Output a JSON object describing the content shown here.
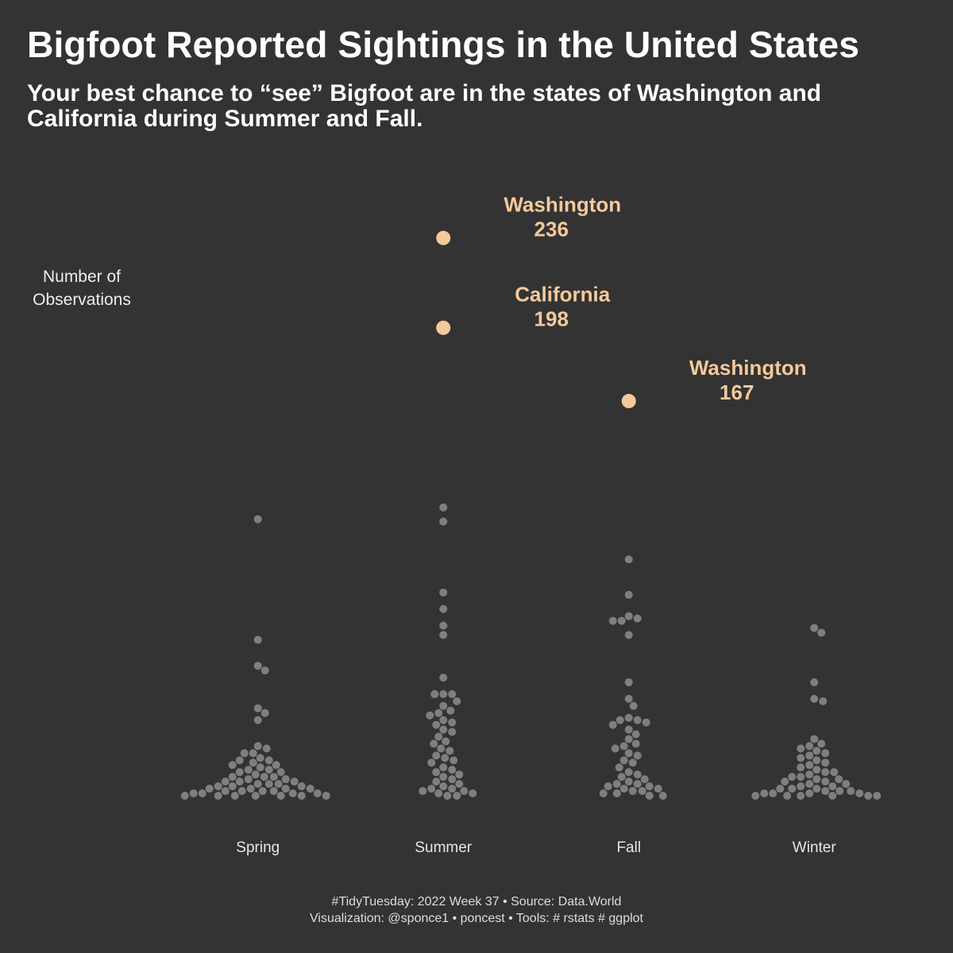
{
  "chart_data": {
    "type": "beeswarm",
    "title": "Bigfoot Reported Sightings in the United States",
    "subtitle": "Your best chance to “see” Bigfoot are in the states of Washington and California during Summer and Fall.",
    "y_label": "Number of Observations",
    "categories": [
      "Spring",
      "Summer",
      "Fall",
      "Winter"
    ],
    "values": [
      [
        117,
        66,
        55,
        53,
        37,
        35,
        32,
        21,
        20,
        18,
        18,
        16,
        15,
        15,
        14,
        13,
        13,
        12,
        11,
        11,
        10,
        10,
        9,
        8,
        8,
        8,
        7,
        7,
        6,
        6,
        6,
        5,
        5,
        5,
        4,
        4,
        4,
        3,
        3,
        3,
        3,
        2,
        2,
        2,
        2,
        1,
        1,
        1,
        1,
        0,
        0,
        0,
        0,
        0,
        0,
        0
      ],
      [
        236,
        198,
        122,
        116,
        86,
        79,
        72,
        68,
        50,
        43,
        43,
        43,
        40,
        38,
        36,
        35,
        34,
        32,
        31,
        30,
        28,
        27,
        25,
        23,
        22,
        20,
        19,
        17,
        16,
        15,
        14,
        12,
        11,
        10,
        9,
        8,
        7,
        6,
        5,
        4,
        3,
        3,
        2,
        2,
        1,
        1,
        0,
        0
      ],
      [
        167,
        100,
        85,
        76,
        75,
        74,
        74,
        68,
        48,
        41,
        38,
        33,
        32,
        32,
        31,
        30,
        28,
        26,
        24,
        22,
        21,
        20,
        18,
        17,
        15,
        14,
        12,
        10,
        9,
        8,
        7,
        6,
        5,
        5,
        4,
        4,
        3,
        3,
        2,
        2,
        1,
        1,
        0,
        0
      ],
      [
        71,
        69,
        48,
        41,
        40,
        24,
        22,
        21,
        20,
        19,
        18,
        17,
        16,
        15,
        14,
        13,
        12,
        11,
        10,
        10,
        9,
        8,
        8,
        7,
        7,
        6,
        6,
        5,
        5,
        4,
        4,
        3,
        3,
        3,
        2,
        2,
        2,
        1,
        1,
        1,
        1,
        0,
        0,
        0,
        0,
        0,
        0
      ]
    ],
    "color": "#7f7f7f",
    "highlight_color": "#f5c99b",
    "annotations": [
      {
        "text": "Washington",
        "value": 236,
        "category": "Summer"
      },
      {
        "text": "California",
        "value": 198,
        "category": "Summer"
      },
      {
        "text": "Washington",
        "value": 167,
        "category": "Fall"
      }
    ],
    "ylim": [
      0,
      250
    ],
    "caption": [
      "#TidyTuesday: 2022 Week 37 • Source: Data.World",
      "Visualization: @sponce1 • poncest • Tools: # rstats # ggplot"
    ]
  }
}
